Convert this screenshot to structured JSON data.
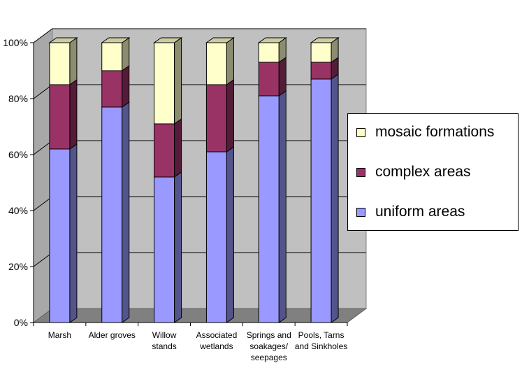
{
  "chart_data": {
    "type": "bar",
    "stacked": "percent",
    "three_d": true,
    "categories": [
      "Marsh",
      "Alder groves",
      "Willow stands",
      "Associated wetlands",
      "Springs and soakages/ seepages",
      "Pools, Tarns and Sinkholes"
    ],
    "category_lines": [
      [
        "Marsh"
      ],
      [
        "Alder groves"
      ],
      [
        "Willow",
        "stands"
      ],
      [
        "Associated",
        "wetlands"
      ],
      [
        "Springs and",
        "soakages/",
        "seepages"
      ],
      [
        "Pools, Tarns",
        "and Sinkholes"
      ]
    ],
    "series": [
      {
        "name": "uniform areas",
        "values": [
          62,
          77,
          52,
          61,
          81,
          87
        ],
        "color": "#9999FF"
      },
      {
        "name": "complex areas",
        "values": [
          23,
          13,
          19,
          24,
          12,
          6
        ],
        "color": "#993366"
      },
      {
        "name": "mosaic formations",
        "values": [
          15,
          10,
          29,
          15,
          7,
          7
        ],
        "color": "#FFFFCC"
      }
    ],
    "ylim": [
      0,
      100
    ],
    "yticks": [
      "0%",
      "20%",
      "40%",
      "60%",
      "80%",
      "100%"
    ],
    "grid": true,
    "legend_position": "right",
    "legend_order": [
      "mosaic formations",
      "complex areas",
      "uniform areas"
    ],
    "title": "",
    "xlabel": "",
    "ylabel": ""
  }
}
